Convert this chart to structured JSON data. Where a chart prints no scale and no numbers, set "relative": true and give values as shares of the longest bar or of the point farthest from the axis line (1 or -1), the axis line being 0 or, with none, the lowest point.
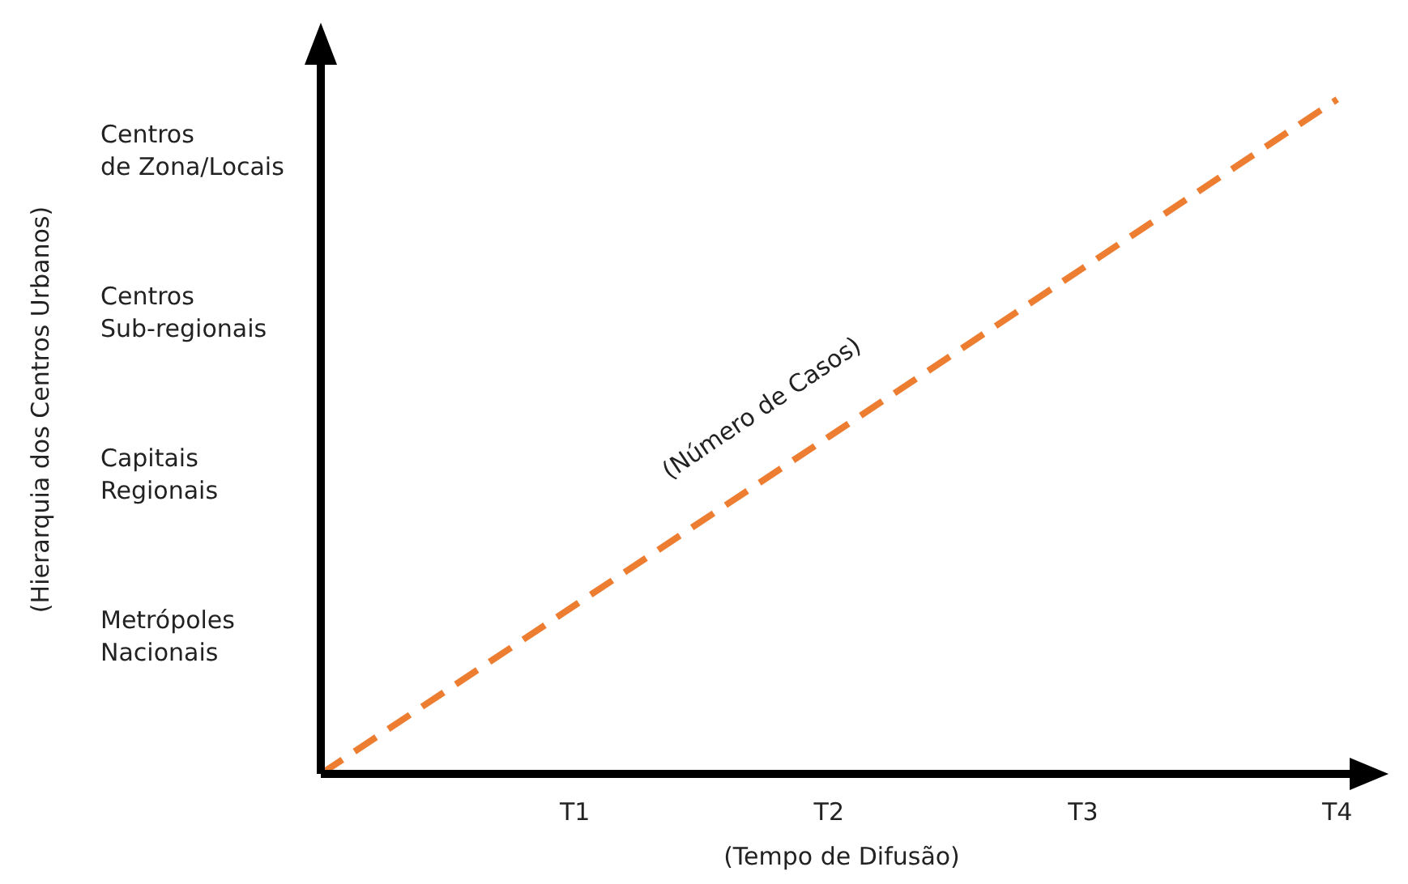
{
  "chart_data": {
    "type": "line",
    "relative": true,
    "xlabel": "(Tempo de Difusão)",
    "categories": [
      null,
      "T1",
      "T2",
      "T3",
      "T4"
    ],
    "series": [
      {
        "color": "#ed7d31",
        "values": [
          0,
          0.25,
          0.5,
          0.75,
          1
        ]
      }
    ],
    "annotations": [
      "(Hierarquia dos Centros Urbanos)",
      "Centros\nde Zona/Locais",
      "Centros\nSub-regionais",
      "Capitais\nRegionais",
      "Metrópoles\nNacionais",
      "(Número de Casos)"
    ],
    "line_style": "dashed",
    "marker": "none",
    "grid": false,
    "legend": false
  }
}
